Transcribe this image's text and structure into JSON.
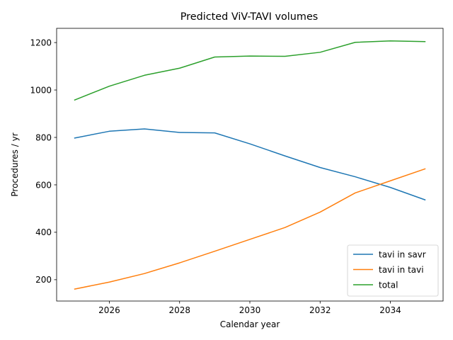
{
  "chart_data": {
    "type": "line",
    "title": "Predicted ViV-TAVI volumes",
    "xlabel": "Calendar year",
    "ylabel": "Procedures / yr",
    "x": [
      2025,
      2026,
      2027,
      2028,
      2029,
      2030,
      2031,
      2032,
      2033,
      2034,
      2035
    ],
    "xlim": [
      2024.5,
      2035.5
    ],
    "ylim": [
      110,
      1260
    ],
    "xticks": [
      2026,
      2028,
      2030,
      2032,
      2034
    ],
    "yticks": [
      200,
      400,
      600,
      800,
      1000,
      1200
    ],
    "grid": false,
    "legend_position": "lower-right",
    "series": [
      {
        "name": "tavi in savr",
        "color": "#1f77b4",
        "values": [
          797,
          826,
          836,
          821,
          819,
          773,
          722,
          673,
          634,
          589,
          536
        ]
      },
      {
        "name": "tavi in tavi",
        "color": "#ff7f0e",
        "values": [
          160,
          190,
          226,
          271,
          320,
          370,
          420,
          485,
          566,
          617,
          668
        ]
      },
      {
        "name": "total",
        "color": "#2ca02c",
        "values": [
          957,
          1016,
          1062,
          1092,
          1139,
          1143,
          1142,
          1159,
          1201,
          1207,
          1204
        ]
      }
    ]
  }
}
